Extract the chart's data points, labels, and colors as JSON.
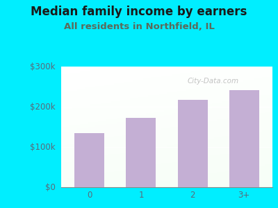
{
  "title": "Median family income by earners",
  "subtitle": "All residents in Northfield, IL",
  "categories": [
    "0",
    "1",
    "2",
    "3+"
  ],
  "values": [
    135000,
    172000,
    218000,
    242000
  ],
  "bar_color": "#c4afd4",
  "background_outer": "#00eeff",
  "title_color": "#1a1a1a",
  "subtitle_color": "#5a6a5a",
  "tick_color": "#5a6a7a",
  "ylim": [
    0,
    300000
  ],
  "yticks": [
    0,
    100000,
    200000,
    300000
  ],
  "ytick_labels": [
    "$0",
    "$100k",
    "$200k",
    "$300k"
  ],
  "title_fontsize": 12,
  "subtitle_fontsize": 9.5,
  "watermark": "City-Data.com"
}
